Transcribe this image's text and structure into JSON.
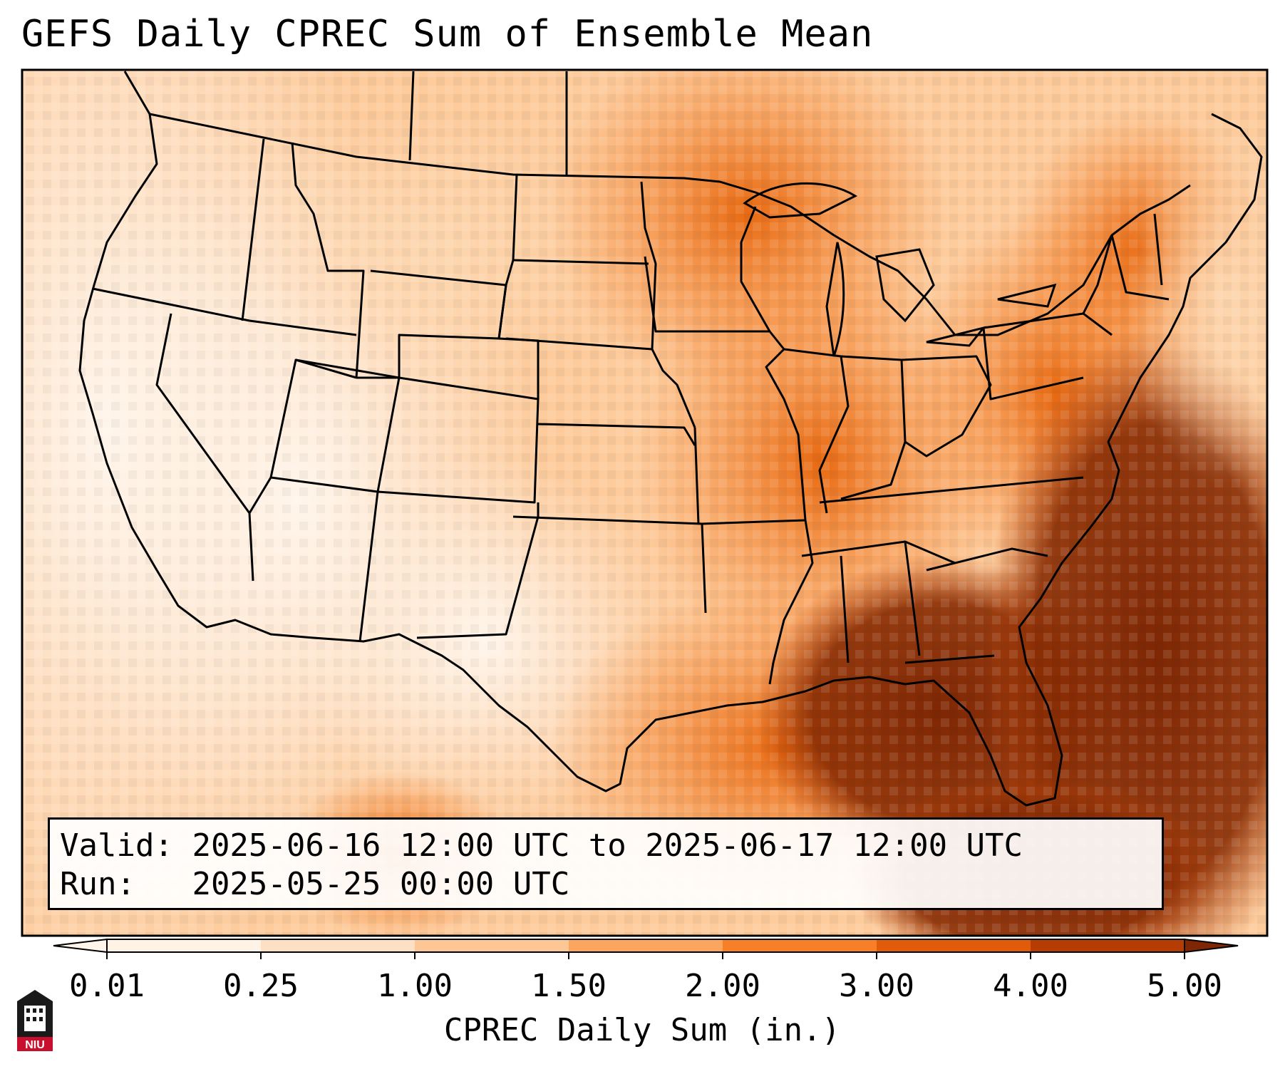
{
  "title": "GEFS Daily CPREC Sum of Ensemble Mean",
  "valid_label": "Valid:",
  "valid_text": "2025-06-16 12:00 UTC to 2025-06-17 12:00 UTC",
  "run_label": "Run:",
  "run_text": "2025-05-25 00:00 UTC",
  "colorbar": {
    "label": "CPREC Daily Sum (in.)",
    "ticks": [
      "0.01",
      "0.25",
      "1.00",
      "1.50",
      "2.00",
      "3.00",
      "4.00",
      "5.00"
    ],
    "colors": [
      "#fff3e6",
      "#fde0c4",
      "#fdc695",
      "#fca55f",
      "#f67f27",
      "#e05b0a",
      "#b53d04"
    ],
    "under_color": "#fff5eb",
    "over_color": "#7f2704"
  },
  "logo": {
    "text": "NIU",
    "color": "#c8102e"
  }
}
